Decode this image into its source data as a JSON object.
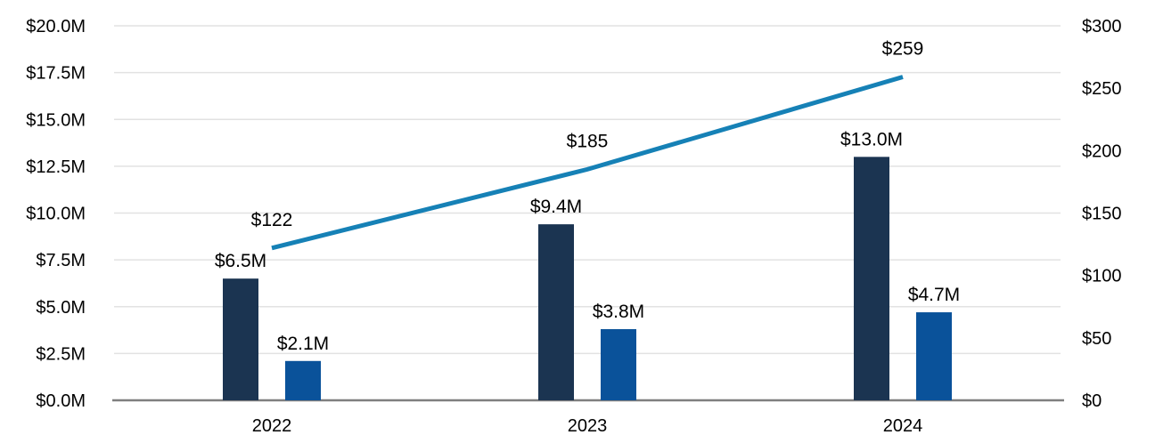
{
  "chart_data": {
    "type": "combo",
    "title": "",
    "categories": [
      "2022",
      "2023",
      "2024"
    ],
    "series": [
      {
        "name": "navy-bar-series",
        "type": "bar",
        "axis": "left",
        "color": "#1b3451",
        "values": [
          6.5,
          9.4,
          13.0
        ],
        "labels": [
          "$6.5M",
          "$9.4M",
          "$13.0M"
        ]
      },
      {
        "name": "blue-bar-series",
        "type": "bar",
        "axis": "left",
        "color": "#0a529a",
        "values": [
          2.1,
          3.8,
          4.7
        ],
        "labels": [
          "$2.1M",
          "$3.8M",
          "$4.7M"
        ]
      },
      {
        "name": "line-series",
        "type": "line",
        "axis": "right",
        "color": "#1681b6",
        "values": [
          122,
          185,
          259
        ],
        "labels": [
          "$122",
          "$185",
          "$259"
        ]
      }
    ],
    "left_axis": {
      "min": 0,
      "max": 20,
      "step": 2.5,
      "tick_labels": [
        "$0.0M",
        "$2.5M",
        "$5.0M",
        "$7.5M",
        "$10.0M",
        "$12.5M",
        "$15.0M",
        "$17.5M",
        "$20.0M"
      ]
    },
    "right_axis": {
      "min": 0,
      "max": 300,
      "step": 50,
      "tick_labels": [
        "$0",
        "$50",
        "$100",
        "$150",
        "$200",
        "$250",
        "$300"
      ]
    },
    "grid": true,
    "legend": "none",
    "style": {
      "background_color": "#ffffff",
      "gridline_color": "#e2e2e2",
      "axis_line_color": "#7f7f7f",
      "text_color": "#000000"
    }
  }
}
